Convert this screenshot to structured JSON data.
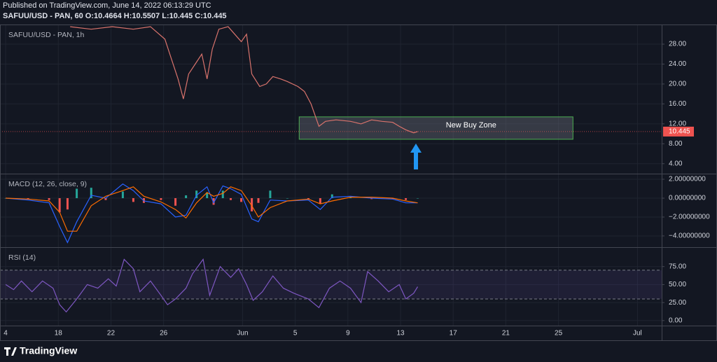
{
  "header": {
    "published": "Published on TradingView.com, June 14, 2022 06:13:29 UTC",
    "symbol_line": "SAFUU/USD - PAN, 60  O:10.4664  H:10.5507  L:10.445  C:10.445"
  },
  "chart_data": [
    {
      "type": "line",
      "title": "SAFUU/USD - PAN, 1h",
      "color": "#d9736c",
      "grid": true,
      "x": [
        4.9,
        6.5,
        8.1,
        9.7,
        11,
        12.1,
        12.6,
        13.1,
        13.5,
        13.9,
        14.4,
        14.9,
        15.3,
        15.7,
        16.2,
        16.9,
        17.4,
        17.9,
        18.3,
        18.7,
        19.3,
        19.8,
        20.3,
        20.9,
        21.4,
        22.2,
        22.7,
        23.2,
        23.8,
        24.3,
        25.1,
        26.2,
        27,
        27.8,
        28.6,
        29.4,
        29.9,
        30.4,
        31,
        31.3
      ],
      "values": [
        31.5,
        31,
        31.5,
        31,
        31.5,
        29,
        25,
        21,
        17,
        22,
        24,
        26,
        21,
        27,
        31,
        31.5,
        30,
        28.5,
        30,
        22,
        19.5,
        20,
        21.5,
        21,
        20.5,
        19.5,
        18.5,
        16,
        11.5,
        12.5,
        12.8,
        12.5,
        12,
        12.8,
        12.5,
        12.3,
        11.5,
        10.8,
        10.2,
        10.445
      ],
      "xlim": [
        -0.43,
        49.84
      ],
      "ylim": [
        2.0,
        31.8
      ],
      "yticks": [
        {
          "value": 4,
          "label": "4.00"
        },
        {
          "value": 8,
          "label": "8.00"
        },
        {
          "value": 12,
          "label": "12.00"
        },
        {
          "value": 16,
          "label": "16.00"
        },
        {
          "value": 20,
          "label": "20.00"
        },
        {
          "value": 24,
          "label": "24.00"
        },
        {
          "value": 28,
          "label": "28.00"
        }
      ],
      "zone": {
        "label": "New Buy Zone",
        "x": [
          22.3,
          43.1
        ],
        "y": [
          8.9,
          13.4
        ],
        "color": "#4caf50"
      }
    },
    {
      "type": "line",
      "title": "MACD (12, 26, close, 9)",
      "grid": true,
      "x": [
        0,
        1.7,
        3.3,
        4.1,
        4.7,
        5.4,
        6.5,
        7.6,
        8.9,
        9.7,
        10.5,
        11.8,
        12.9,
        13.7,
        14.5,
        15.3,
        15.8,
        16.5,
        17.1,
        17.9,
        18.7,
        19.2,
        20.1,
        21.4,
        23,
        23.9,
        24.8,
        26.2,
        27.8,
        29.4,
        30.4,
        31.3
      ],
      "series": [
        {
          "color": "#2962ff",
          "values": [
            0,
            -0.2,
            -0.5,
            -3.0,
            -4.7,
            -2.5,
            0.3,
            0,
            1.5,
            0.8,
            -0.3,
            -0.6,
            -2.0,
            -1.8,
            0.3,
            1.2,
            -0.5,
            1.3,
            1.0,
            0.4,
            -2.2,
            -2.5,
            -0.2,
            -0.3,
            -0.2,
            -1.2,
            0.1,
            0.2,
            0,
            -0.1,
            -0.5,
            -0.5
          ]
        },
        {
          "color": "#ff6d00",
          "values": [
            0,
            -0.1,
            -0.3,
            -1.5,
            -3.5,
            -3.5,
            -0.8,
            0.2,
            0.8,
            1.2,
            0.2,
            -0.4,
            -1.2,
            -2.1,
            -0.5,
            0.6,
            0.2,
            0.5,
            1.2,
            0.8,
            -0.8,
            -2.0,
            -1.0,
            -0.3,
            -0.1,
            -0.6,
            -0.3,
            0.1,
            0.1,
            0,
            -0.3,
            -0.5
          ]
        }
      ],
      "histogram": {
        "colors": [
          "#26a69a",
          "#ef5350"
        ],
        "values": [
          0,
          -0.1,
          -0.2,
          -1.5,
          -1.2,
          1.0,
          1.1,
          -0.2,
          0.7,
          -0.4,
          -0.5,
          -0.2,
          -0.8,
          0.3,
          0.8,
          0.6,
          -0.7,
          0.8,
          -0.2,
          -0.4,
          -1.4,
          -0.5,
          0.8,
          0,
          -0.1,
          -0.6,
          0.4,
          0.1,
          -0.1,
          -0.1,
          -0.2,
          0
        ]
      },
      "xlim": [
        -0.43,
        49.84
      ],
      "ylim": [
        -5.19,
        2.52
      ],
      "yticks": [
        {
          "value": -4,
          "label": "−4.00000000"
        },
        {
          "value": -2,
          "label": "−2.00000000"
        },
        {
          "value": 0,
          "label": "0.00000000"
        },
        {
          "value": 2,
          "label": "2.00000000"
        }
      ]
    },
    {
      "type": "line",
      "title": "RSI (14)",
      "color": "#7e57c2",
      "grid": true,
      "band": [
        30,
        70
      ],
      "x": [
        0,
        0.6,
        1.2,
        2,
        2.8,
        3.6,
        4.1,
        4.6,
        5.4,
        6.2,
        7,
        7.8,
        8.4,
        9,
        9.7,
        10.2,
        11,
        11.8,
        12.3,
        12.9,
        13.7,
        14.2,
        15,
        15.5,
        16.3,
        17.1,
        17.7,
        18.3,
        18.8,
        19.5,
        20.3,
        21.1,
        21.9,
        23,
        23.8,
        24.6,
        25.4,
        26.2,
        27,
        27.5,
        28.3,
        29.1,
        29.9,
        30.4,
        31,
        31.3
      ],
      "values": [
        50,
        43,
        55,
        40,
        55,
        45,
        22,
        12,
        30,
        50,
        45,
        58,
        48,
        85,
        72,
        40,
        55,
        35,
        22,
        30,
        45,
        65,
        85,
        35,
        75,
        60,
        72,
        50,
        28,
        40,
        62,
        45,
        38,
        30,
        18,
        45,
        55,
        45,
        25,
        68,
        55,
        40,
        50,
        30,
        38,
        47
      ],
      "xlim": [
        -0.43,
        49.84
      ],
      "ylim": [
        -7,
        101
      ],
      "yticks": [
        {
          "value": 0,
          "label": "0.00"
        },
        {
          "value": 25,
          "label": "25.00"
        },
        {
          "value": 50,
          "label": "50.00"
        },
        {
          "value": 75,
          "label": "75.00"
        }
      ],
      "xticks": [
        {
          "value": 0,
          "label": "4"
        },
        {
          "value": 4,
          "label": "18"
        },
        {
          "value": 8,
          "label": "22"
        },
        {
          "value": 12,
          "label": "26"
        },
        {
          "value": 18,
          "label": "Jun"
        },
        {
          "value": 22,
          "label": "5"
        },
        {
          "value": 26,
          "label": "9"
        },
        {
          "value": 30,
          "label": "13"
        },
        {
          "value": 34,
          "label": "17"
        },
        {
          "value": 38,
          "label": "21"
        },
        {
          "value": 42,
          "label": "25"
        },
        {
          "value": 48,
          "label": "Jul"
        }
      ]
    }
  ],
  "footer": {
    "brand": "TradingView"
  }
}
